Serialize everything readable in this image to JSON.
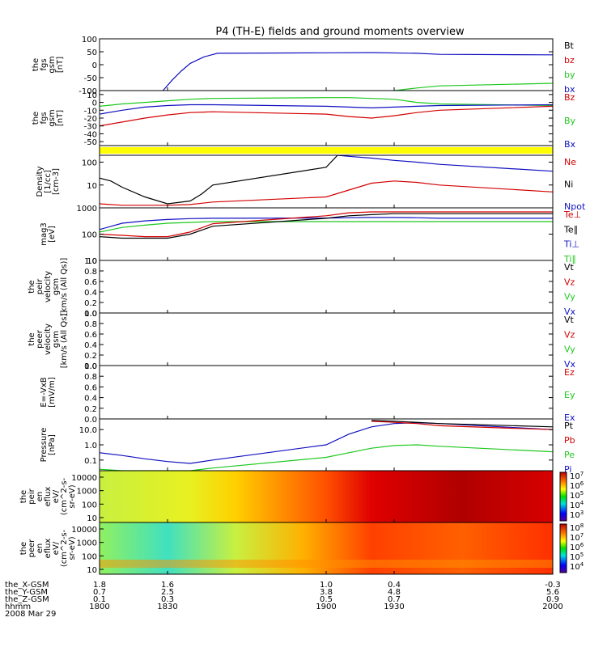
{
  "title": "P4 (TH-E) fields and ground moments overview",
  "colors": {
    "black": "#000000",
    "red": "#d40000",
    "green": "#1ec81e",
    "blue": "#1010c0",
    "yellow": "#ffff00",
    "frame": "#000000"
  },
  "chart_data": [
    {
      "type": "line",
      "ylabel": [
        "the",
        "fgs",
        "gsm",
        "[nT]"
      ],
      "ylim": [
        -100,
        100
      ],
      "yticks": [
        "100",
        "50",
        "0",
        "-50",
        "-100"
      ],
      "yticks_values": [
        100,
        50,
        0,
        -50,
        -100
      ],
      "legend": [
        {
          "label": "Bt",
          "color": "#000000"
        },
        {
          "label": "bz",
          "color": "#d40000"
        },
        {
          "label": "by",
          "color": "#1ec81e"
        },
        {
          "label": "bx",
          "color": "#1010c0"
        }
      ],
      "series": [
        {
          "name": "bx",
          "color": "#1010c0",
          "x": [
            1828,
            1832,
            1836,
            1840,
            1846,
            1852,
            1900,
            1920,
            1940,
            1950,
            2000
          ],
          "y": [
            -100,
            -60,
            -25,
            5,
            30,
            44,
            46,
            47,
            44,
            40,
            38
          ]
        },
        {
          "name": "by",
          "color": "#1ec81e",
          "x": [
            1930,
            1940,
            1950,
            2000
          ],
          "y": [
            -100,
            -90,
            -82,
            -72
          ]
        }
      ]
    },
    {
      "type": "line",
      "ylabel": [
        "the",
        "fgs",
        "gsm",
        "[nT]"
      ],
      "ylim": [
        -55,
        15
      ],
      "yticks": [
        "10",
        "0",
        "-10",
        "-20",
        "-30",
        "-40",
        "-50"
      ],
      "yticks_values": [
        10,
        0,
        -10,
        -20,
        -30,
        -40,
        -50
      ],
      "legend": [
        {
          "label": "Bz",
          "color": "#d40000"
        },
        {
          "label": "By",
          "color": "#1ec81e"
        },
        {
          "label": "Bx",
          "color": "#1010c0"
        }
      ],
      "series": [
        {
          "name": "By",
          "color": "#1ec81e",
          "x": [
            1800,
            1810,
            1820,
            1830,
            1840,
            1850,
            1900,
            1910,
            1920,
            1930,
            1940,
            1950,
            2000
          ],
          "y": [
            -5,
            -2,
            0,
            2,
            4,
            5,
            6,
            6,
            5,
            4,
            0,
            -2,
            -4
          ]
        },
        {
          "name": "Bx",
          "color": "#1010c0",
          "x": [
            1800,
            1810,
            1820,
            1830,
            1840,
            1850,
            1900,
            1910,
            1920,
            1930,
            1940,
            1950,
            2000
          ],
          "y": [
            -15,
            -10,
            -6,
            -4,
            -3,
            -3,
            -5,
            -6,
            -7,
            -6,
            -5,
            -4,
            -3
          ]
        },
        {
          "name": "Bz",
          "color": "#d40000",
          "x": [
            1800,
            1810,
            1820,
            1830,
            1840,
            1850,
            1900,
            1910,
            1920,
            1930,
            1940,
            1950,
            2000
          ],
          "y": [
            -30,
            -25,
            -20,
            -16,
            -13,
            -12,
            -15,
            -18,
            -20,
            -17,
            -13,
            -10,
            -5
          ]
        }
      ]
    },
    {
      "type": "bar",
      "label": "flag bar",
      "color": "#ffff00"
    },
    {
      "type": "line",
      "scale": "log",
      "ylabel": [
        "Density",
        "[1/cc]",
        "[cm-3]"
      ],
      "ylim": [
        1,
        200
      ],
      "yticks": [
        "100",
        "10"
      ],
      "yticks_values": [
        100,
        10
      ],
      "legend": [
        {
          "label": "Ne",
          "color": "#d40000"
        },
        {
          "label": "Ni",
          "color": "#000000"
        },
        {
          "label": "Npot",
          "color": "#1010c0"
        }
      ],
      "series": [
        {
          "name": "Ni",
          "color": "#000000",
          "x": [
            1800,
            1805,
            1810,
            1820,
            1830,
            1840,
            1845,
            1850,
            1900,
            1905
          ],
          "y": [
            20,
            15,
            8,
            3,
            1.5,
            2,
            4,
            10,
            60,
            200
          ]
        },
        {
          "name": "Npot",
          "color": "#1010c0",
          "x": [
            1905,
            1910,
            1920,
            1930,
            1940,
            1950,
            2000
          ],
          "y": [
            200,
            180,
            150,
            120,
            100,
            80,
            40
          ]
        },
        {
          "name": "Ne",
          "color": "#d40000",
          "x": [
            1800,
            1810,
            1820,
            1830,
            1840,
            1850,
            1900,
            1910,
            1920,
            1930,
            1940,
            1950,
            2000
          ],
          "y": [
            1.5,
            1.3,
            1.3,
            1.3,
            1.4,
            1.8,
            3,
            6,
            12,
            15,
            13,
            10,
            5
          ]
        }
      ]
    },
    {
      "type": "line",
      "scale": "log",
      "ylabel": [
        "mag3",
        "[eV]"
      ],
      "ylim": [
        10,
        1000
      ],
      "yticks": [
        "1000",
        "100",
        "10"
      ],
      "yticks_values": [
        1000,
        100,
        10
      ],
      "legend": [
        {
          "label": "Te⊥",
          "color": "#d40000"
        },
        {
          "label": "Te∥",
          "color": "#000000"
        },
        {
          "label": "Ti⊥",
          "color": "#1010c0"
        },
        {
          "label": "Ti∥",
          "color": "#1ec81e"
        }
      ],
      "series": [
        {
          "name": "Ti⊥",
          "color": "#1010c0",
          "x": [
            1800,
            1810,
            1820,
            1830,
            1840,
            1850,
            1900,
            1910,
            1920,
            1930,
            1940,
            1950,
            2000
          ],
          "y": [
            150,
            260,
            320,
            360,
            390,
            400,
            410,
            420,
            430,
            430,
            420,
            400,
            400
          ]
        },
        {
          "name": "Ti∥",
          "color": "#1ec81e",
          "x": [
            1800,
            1810,
            1820,
            1830,
            1840,
            1850,
            1900,
            1910,
            1920,
            1930,
            1940,
            1950,
            2000
          ],
          "y": [
            120,
            180,
            220,
            260,
            280,
            300,
            300,
            300,
            300,
            300,
            300,
            300,
            300
          ]
        },
        {
          "name": "Te∥",
          "color": "#000000",
          "x": [
            1800,
            1810,
            1820,
            1830,
            1840,
            1850,
            1900,
            1910,
            1920,
            1930,
            1940,
            1950,
            2000
          ],
          "y": [
            80,
            70,
            70,
            70,
            100,
            200,
            400,
            500,
            550,
            600,
            600,
            600,
            600
          ]
        },
        {
          "name": "Te⊥",
          "color": "#d40000",
          "x": [
            1800,
            1810,
            1820,
            1830,
            1840,
            1850,
            1900,
            1910,
            1920,
            1930,
            1940,
            1950,
            2000
          ],
          "y": [
            100,
            90,
            80,
            80,
            120,
            250,
            500,
            650,
            700,
            700,
            700,
            700,
            700
          ]
        }
      ]
    },
    {
      "type": "line",
      "ylabel": [
        "the",
        "peir",
        "velocity",
        "gsm",
        "[km/s (All Qs)]"
      ],
      "ylim": [
        0,
        1
      ],
      "yticks": [
        "1.0",
        "0.8",
        "0.6",
        "0.4",
        "0.2",
        "0.0"
      ],
      "yticks_values": [
        1,
        0.8,
        0.6,
        0.4,
        0.2,
        0
      ],
      "legend": [
        {
          "label": "Vt",
          "color": "#000000"
        },
        {
          "label": "Vz",
          "color": "#d40000"
        },
        {
          "label": "Vy",
          "color": "#1ec81e"
        },
        {
          "label": "Vx",
          "color": "#1010c0"
        }
      ],
      "series": []
    },
    {
      "type": "line",
      "ylabel": [
        "the",
        "peer",
        "velocity",
        "gsm",
        "[km/s (All Qs)]"
      ],
      "ylim": [
        0,
        1
      ],
      "yticks": [
        "1.0",
        "0.8",
        "0.6",
        "0.4",
        "0.2",
        "0.0"
      ],
      "yticks_values": [
        1,
        0.8,
        0.6,
        0.4,
        0.2,
        0
      ],
      "legend": [
        {
          "label": "Vt",
          "color": "#000000"
        },
        {
          "label": "Vz",
          "color": "#d40000"
        },
        {
          "label": "Vy",
          "color": "#1ec81e"
        },
        {
          "label": "Vx",
          "color": "#1010c0"
        }
      ],
      "series": []
    },
    {
      "type": "line",
      "ylabel": [
        "E=-VxB",
        "[mV/m]"
      ],
      "ylim": [
        0,
        1
      ],
      "yticks": [
        "1.0",
        "0.8",
        "0.6",
        "0.4",
        "0.2",
        "0.0"
      ],
      "yticks_values": [
        1,
        0.8,
        0.6,
        0.4,
        0.2,
        0
      ],
      "legend": [
        {
          "label": "Ez",
          "color": "#d40000"
        },
        {
          "label": "Ey",
          "color": "#1ec81e"
        },
        {
          "label": "Ex",
          "color": "#1010c0"
        }
      ],
      "series": []
    },
    {
      "type": "line",
      "scale": "log",
      "ylabel": [
        "Pressure",
        "[nPa]"
      ],
      "ylim": [
        0.02,
        50
      ],
      "yticks": [
        "10.0",
        "1.0",
        "0.1"
      ],
      "yticks_values": [
        10,
        1,
        0.1
      ],
      "legend": [
        {
          "label": "Pt",
          "color": "#000000"
        },
        {
          "label": "Pb",
          "color": "#d40000"
        },
        {
          "label": "Pe",
          "color": "#1ec81e"
        },
        {
          "label": "Pi",
          "color": "#1010c0"
        }
      ],
      "series": [
        {
          "name": "Pi",
          "color": "#1010c0",
          "x": [
            1800,
            1810,
            1820,
            1830,
            1840,
            1850,
            1900,
            1910,
            1920,
            1930,
            1940,
            1950,
            2000
          ],
          "y": [
            0.3,
            0.2,
            0.12,
            0.08,
            0.06,
            0.1,
            1,
            5,
            15,
            25,
            28,
            25,
            10
          ]
        },
        {
          "name": "Pe",
          "color": "#1ec81e",
          "x": [
            1800,
            1810,
            1820,
            1830,
            1840,
            1850,
            1900,
            1910,
            1920,
            1930,
            1940,
            1950,
            2000
          ],
          "y": [
            0.025,
            0.02,
            0.02,
            0.02,
            0.02,
            0.03,
            0.15,
            0.3,
            0.6,
            0.9,
            1,
            0.8,
            0.35
          ]
        },
        {
          "name": "Pb",
          "color": "#d40000",
          "x": [
            1920,
            1930,
            1940,
            1950,
            2000
          ],
          "y": [
            35,
            30,
            25,
            18,
            10
          ]
        },
        {
          "name": "Pt",
          "color": "#000000",
          "x": [
            1920,
            1930,
            1940,
            1950,
            2000
          ],
          "y": [
            40,
            35,
            30,
            25,
            15
          ]
        }
      ]
    },
    {
      "type": "heatmap",
      "ylabel": [
        "the",
        "peir",
        "en",
        "eflux",
        "eV/",
        "(cm^2-s-",
        "sr-eV)"
      ],
      "yticks": [
        "10000",
        "1000",
        "100",
        "10"
      ],
      "colorbar_labels": [
        "10^7",
        "10^6",
        "10^5",
        "10^4",
        "10^3"
      ],
      "colorbar_type": "ion"
    },
    {
      "type": "heatmap",
      "ylabel": [
        "the",
        "peer",
        "en",
        "eflux",
        "eV/",
        "(cm^2-s-",
        "sr-eV)"
      ],
      "yticks": [
        "10000",
        "1000",
        "100",
        "10"
      ],
      "colorbar_labels": [
        "10^8",
        "10^7",
        "10^6",
        "10^5",
        "10^4"
      ],
      "colorbar_type": "electron"
    }
  ],
  "xaxis": {
    "rows": [
      {
        "label": "the_X-GSM",
        "values": [
          "1.8",
          "1.6",
          "1.0",
          "0.4",
          "-0.3"
        ]
      },
      {
        "label": "the_Y-GSM",
        "values": [
          "0.7",
          "2.5",
          "3.8",
          "4.8",
          "5.6"
        ]
      },
      {
        "label": "the_Z-GSM",
        "values": [
          "0.1",
          "0.3",
          "0.5",
          "0.7",
          "0.9"
        ]
      },
      {
        "label": "hhmm",
        "values": [
          "1800",
          "1830",
          "1900",
          "1930",
          "2000"
        ]
      }
    ],
    "date": "2008 Mar 29"
  }
}
